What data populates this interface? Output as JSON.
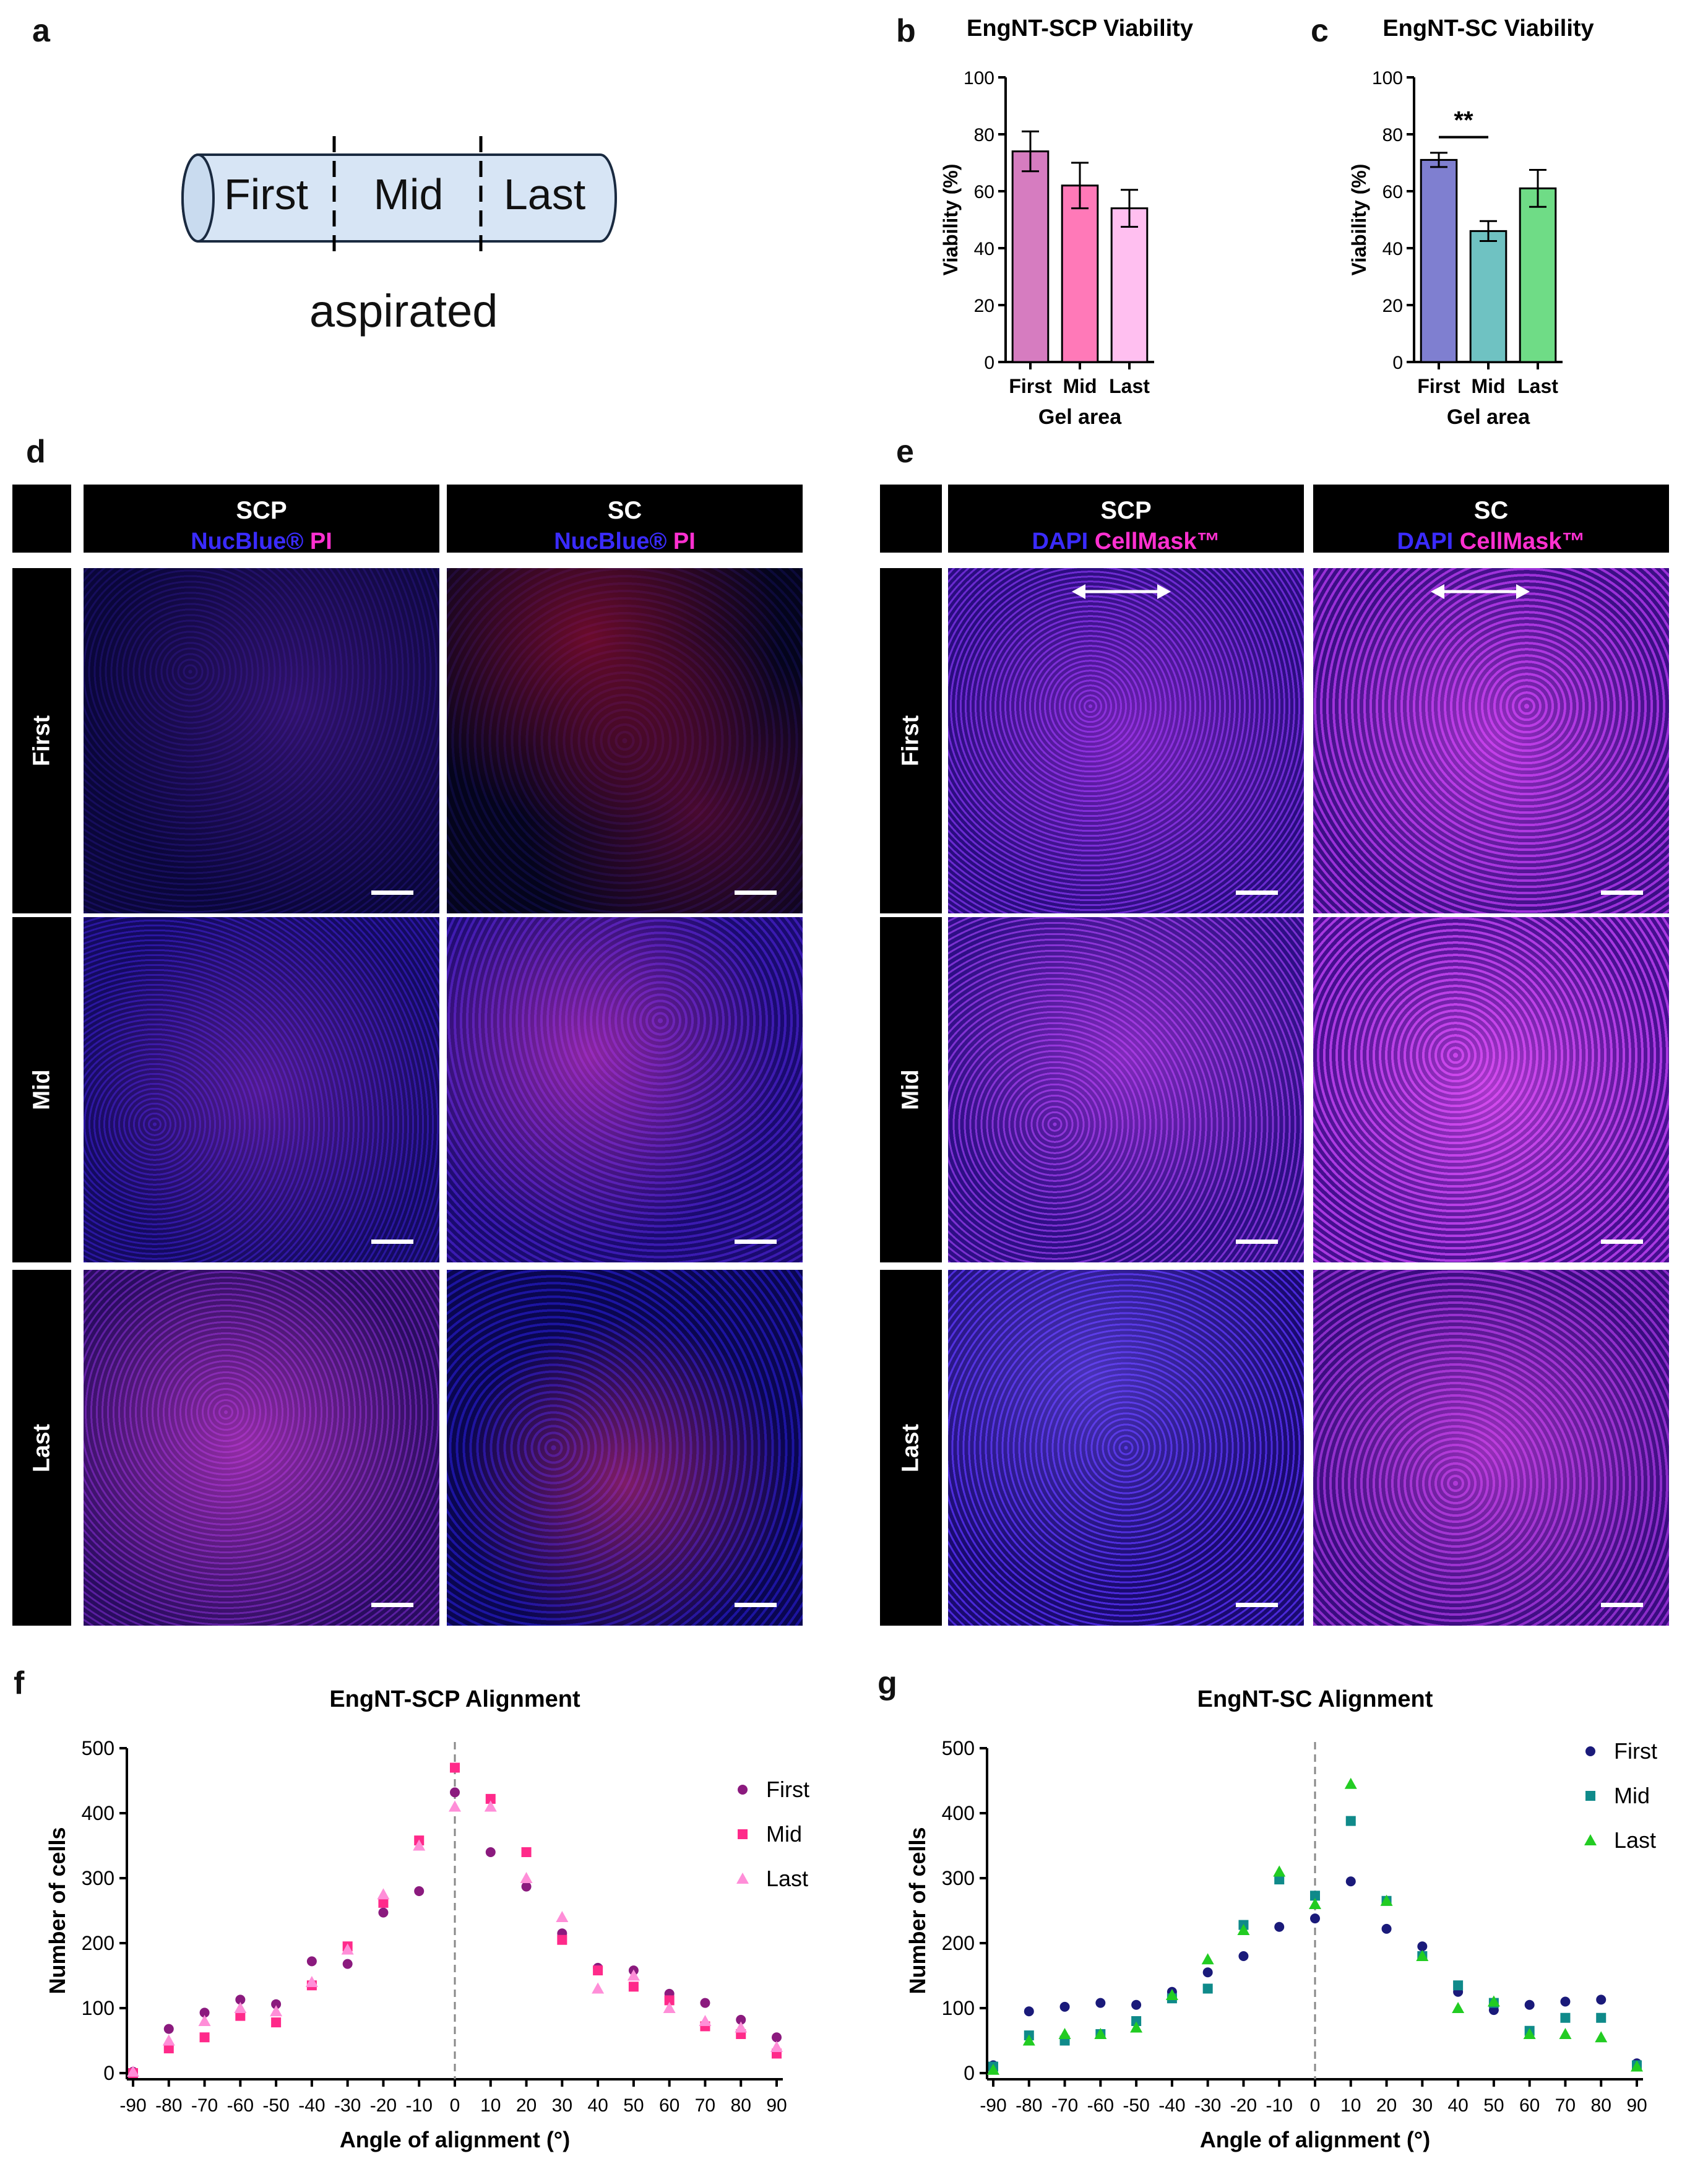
{
  "panel_labels": {
    "a": "a",
    "b": "b",
    "c": "c",
    "d": "d",
    "e": "e",
    "f": "f",
    "g": "g"
  },
  "panel_a": {
    "segments": [
      "First",
      "Mid",
      "Last"
    ],
    "caption": "aspirated"
  },
  "micro_d": {
    "columns": [
      {
        "title": "SCP",
        "stain1": "NucBlue®",
        "stain2": "PI"
      },
      {
        "title": "SC",
        "stain1": "NucBlue®",
        "stain2": "PI"
      }
    ],
    "rows": [
      "First",
      "Mid",
      "Last"
    ]
  },
  "micro_e": {
    "columns": [
      {
        "title": "SCP",
        "stain1": "DAPI",
        "stain2": "CellMask™"
      },
      {
        "title": "SC",
        "stain1": "DAPI",
        "stain2": "CellMask™"
      }
    ],
    "rows": [
      "First",
      "Mid",
      "Last"
    ]
  },
  "colors": {
    "scp_first": "#8b1a7e",
    "scp_mid": "#ff2a8a",
    "scp_last": "#ff8ed8",
    "sc_first": "#1a1a7a",
    "sc_mid": "#0f8a8a",
    "sc_last": "#22cc22",
    "bar_b": [
      "#d67cc0",
      "#ff79b8",
      "#ffbff0"
    ],
    "bar_c": [
      "#7f7fd0",
      "#6fc2c2",
      "#6fdc86"
    ]
  },
  "chart_data": [
    {
      "id": "b",
      "type": "bar",
      "title": "EngNT-SCP Viability",
      "xlabel": "Gel area",
      "ylabel": "Viability (%)",
      "categories": [
        "First",
        "Mid",
        "Last"
      ],
      "values": [
        74,
        62,
        54
      ],
      "errors": [
        7,
        8,
        6.5
      ],
      "ylim": [
        0,
        100
      ],
      "yticks": [
        "0",
        "20",
        "40",
        "60",
        "80",
        "100"
      ]
    },
    {
      "id": "c",
      "type": "bar",
      "title": "EngNT-SC Viability",
      "xlabel": "Gel area",
      "ylabel": "Viability (%)",
      "categories": [
        "First",
        "Mid",
        "Last"
      ],
      "values": [
        71,
        46,
        61
      ],
      "errors": [
        2.5,
        3.5,
        6.5
      ],
      "ylim": [
        0,
        100
      ],
      "yticks": [
        "0",
        "20",
        "40",
        "60",
        "80",
        "100"
      ],
      "significance": "**"
    },
    {
      "id": "f",
      "type": "scatter",
      "title": "EngNT-SCP Alignment",
      "xlabel": "Angle of alignment (°)",
      "ylabel": "Number of cells",
      "x": [
        -90,
        -80,
        -70,
        -60,
        -50,
        -40,
        -30,
        -20,
        -10,
        0,
        10,
        20,
        30,
        40,
        50,
        60,
        70,
        80,
        90
      ],
      "xlim": [
        -90,
        90
      ],
      "ylim": [
        0,
        500
      ],
      "xticks": [
        "-90",
        "-80",
        "-70",
        "-60",
        "-50",
        "-40",
        "-30",
        "-20",
        "-10",
        "0",
        "10",
        "20",
        "30",
        "40",
        "50",
        "60",
        "70",
        "80",
        "90"
      ],
      "yticks": [
        "0",
        "100",
        "200",
        "300",
        "400",
        "500"
      ],
      "series": [
        {
          "name": "First",
          "values": [
            2,
            68,
            93,
            113,
            106,
            172,
            168,
            247,
            280,
            432,
            340,
            287,
            215,
            162,
            158,
            122,
            108,
            82,
            55
          ]
        },
        {
          "name": "Mid",
          "values": [
            0,
            38,
            55,
            88,
            78,
            135,
            195,
            262,
            358,
            470,
            422,
            340,
            205,
            158,
            133,
            112,
            72,
            60,
            30
          ]
        },
        {
          "name": "Last",
          "values": [
            2,
            50,
            80,
            100,
            95,
            140,
            190,
            275,
            350,
            410,
            410,
            300,
            240,
            130,
            150,
            100,
            80,
            70,
            40
          ]
        }
      ]
    },
    {
      "id": "g",
      "type": "scatter",
      "title": "EngNT-SC Alignment",
      "xlabel": "Angle of alignment (°)",
      "ylabel": "Number of cells",
      "x": [
        -90,
        -80,
        -70,
        -60,
        -50,
        -40,
        -30,
        -20,
        -10,
        0,
        10,
        20,
        30,
        40,
        50,
        60,
        70,
        80,
        90
      ],
      "xlim": [
        -90,
        90
      ],
      "ylim": [
        0,
        500
      ],
      "xticks": [
        "-90",
        "-80",
        "-70",
        "-60",
        "-50",
        "-40",
        "-30",
        "-20",
        "-10",
        "0",
        "10",
        "20",
        "30",
        "40",
        "50",
        "60",
        "70",
        "80",
        "90"
      ],
      "yticks": [
        "0",
        "100",
        "200",
        "300",
        "400",
        "500"
      ],
      "series": [
        {
          "name": "First",
          "values": [
            12,
            95,
            102,
            108,
            105,
            125,
            155,
            180,
            225,
            238,
            295,
            222,
            195,
            125,
            97,
            105,
            110,
            113,
            15
          ]
        },
        {
          "name": "Mid",
          "values": [
            10,
            58,
            50,
            60,
            80,
            115,
            130,
            228,
            298,
            273,
            388,
            265,
            180,
            135,
            108,
            65,
            85,
            85,
            12
          ]
        },
        {
          "name": "Last",
          "values": [
            5,
            50,
            60,
            60,
            70,
            120,
            175,
            220,
            310,
            260,
            445,
            265,
            180,
            100,
            110,
            60,
            60,
            55,
            10
          ]
        }
      ]
    }
  ]
}
